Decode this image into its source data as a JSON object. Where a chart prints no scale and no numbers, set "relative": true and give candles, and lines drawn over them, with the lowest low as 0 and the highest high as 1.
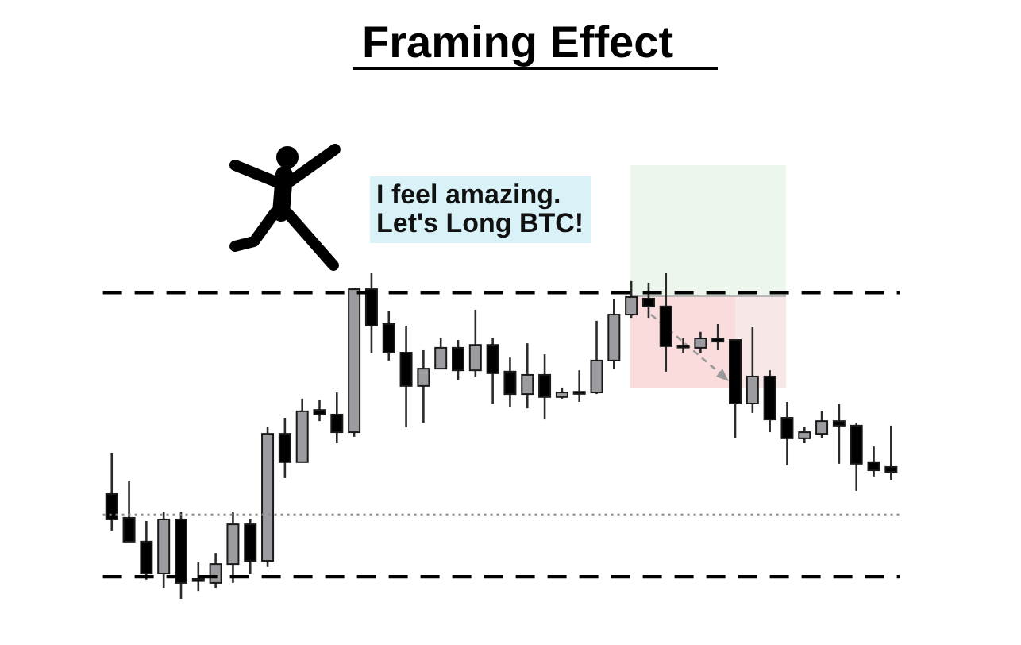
{
  "chart_data": {
    "type": "candlestick",
    "title": "Framing Effect",
    "annotations": [
      "I feel amazing.\nLet's Long BTC!"
    ],
    "relative": true,
    "categories": [
      null,
      null,
      null,
      null,
      null,
      null,
      null,
      null,
      null,
      null,
      null,
      null,
      null,
      null,
      null,
      null,
      null,
      null,
      null,
      null,
      null,
      null,
      null,
      null,
      null,
      null,
      null,
      null,
      null,
      null,
      null,
      null,
      null,
      null,
      null,
      null,
      null,
      null,
      null,
      null,
      null,
      null,
      null,
      null,
      null,
      null
    ],
    "ohlc": [
      [
        0.322,
        0.449,
        0.21,
        0.244
      ],
      [
        0.249,
        0.361,
        0.176,
        0.176
      ],
      [
        0.176,
        0.239,
        0.059,
        0.078
      ],
      [
        0.078,
        0.268,
        0.034,
        0.244
      ],
      [
        0.244,
        0.268,
        0.0,
        0.049
      ],
      [
        0.061,
        0.112,
        0.024,
        0.059
      ],
      [
        0.049,
        0.141,
        0.034,
        0.107
      ],
      [
        0.107,
        0.268,
        0.049,
        0.229
      ],
      [
        0.229,
        0.244,
        0.078,
        0.117
      ],
      [
        0.117,
        0.527,
        0.098,
        0.507
      ],
      [
        0.507,
        0.556,
        0.371,
        0.42
      ],
      [
        0.42,
        0.615,
        0.42,
        0.576
      ],
      [
        0.58,
        0.61,
        0.546,
        0.566
      ],
      [
        0.566,
        0.634,
        0.478,
        0.512
      ],
      [
        0.512,
        0.956,
        0.498,
        0.951
      ],
      [
        0.951,
        1.0,
        0.756,
        0.839
      ],
      [
        0.844,
        0.883,
        0.732,
        0.756
      ],
      [
        0.756,
        0.839,
        0.527,
        0.654
      ],
      [
        0.654,
        0.766,
        0.541,
        0.707
      ],
      [
        0.707,
        0.8,
        0.707,
        0.771
      ],
      [
        0.771,
        0.795,
        0.673,
        0.702
      ],
      [
        0.702,
        0.888,
        0.683,
        0.78
      ],
      [
        0.78,
        0.8,
        0.6,
        0.693
      ],
      [
        0.698,
        0.741,
        0.59,
        0.629
      ],
      [
        0.629,
        0.785,
        0.585,
        0.688
      ],
      [
        0.688,
        0.751,
        0.551,
        0.62
      ],
      [
        0.62,
        0.649,
        0.615,
        0.634
      ],
      [
        0.636,
        0.702,
        0.605,
        0.634
      ],
      [
        0.634,
        0.854,
        0.629,
        0.732
      ],
      [
        0.732,
        0.922,
        0.707,
        0.873
      ],
      [
        0.873,
        0.976,
        0.863,
        0.927
      ],
      [
        0.922,
        0.971,
        0.863,
        0.898
      ],
      [
        0.898,
        1.0,
        0.698,
        0.776
      ],
      [
        0.778,
        0.8,
        0.756,
        0.776
      ],
      [
        0.771,
        0.82,
        0.756,
        0.8
      ],
      [
        0.8,
        0.844,
        0.766,
        0.79
      ],
      [
        0.795,
        0.795,
        0.493,
        0.6
      ],
      [
        0.6,
        0.834,
        0.571,
        0.683
      ],
      [
        0.683,
        0.702,
        0.512,
        0.551
      ],
      [
        0.556,
        0.605,
        0.41,
        0.493
      ],
      [
        0.493,
        0.527,
        0.478,
        0.512
      ],
      [
        0.507,
        0.576,
        0.493,
        0.546
      ],
      [
        0.546,
        0.6,
        0.415,
        0.532
      ],
      [
        0.532,
        0.541,
        0.332,
        0.415
      ],
      [
        0.42,
        0.468,
        0.376,
        0.395
      ],
      [
        0.405,
        0.532,
        0.366,
        0.39
      ]
    ],
    "colors": [
      "#000000",
      "#000000",
      "#000000",
      "#9c9ca0",
      "#000000",
      "#000000",
      "#9c9ca0",
      "#9c9ca0",
      "#000000",
      "#9c9ca0",
      "#000000",
      "#9c9ca0",
      "#000000",
      "#000000",
      "#9c9ca0",
      "#000000",
      "#000000",
      "#000000",
      "#9c9ca0",
      "#9c9ca0",
      "#000000",
      "#9c9ca0",
      "#000000",
      "#000000",
      "#9c9ca0",
      "#000000",
      "#9c9ca0",
      "#000000",
      "#9c9ca0",
      "#9c9ca0",
      "#9c9ca0",
      "#000000",
      "#000000",
      "#000000",
      "#9c9ca0",
      "#000000",
      "#000000",
      "#9c9ca0",
      "#000000",
      "#000000",
      "#9c9ca0",
      "#9c9ca0",
      "#000000",
      "#000000",
      "#000000",
      "#000000"
    ],
    "ref_lines": [
      {
        "axis": "y",
        "value": 0.941,
        "color": "#000000",
        "line_style": "dashed"
      },
      {
        "axis": "y",
        "value": 0.068,
        "color": "#000000",
        "line_style": "dashed"
      },
      {
        "axis": "y",
        "value": 0.259,
        "color": "#8a8a8a",
        "line_style": "dotted"
      }
    ]
  }
}
